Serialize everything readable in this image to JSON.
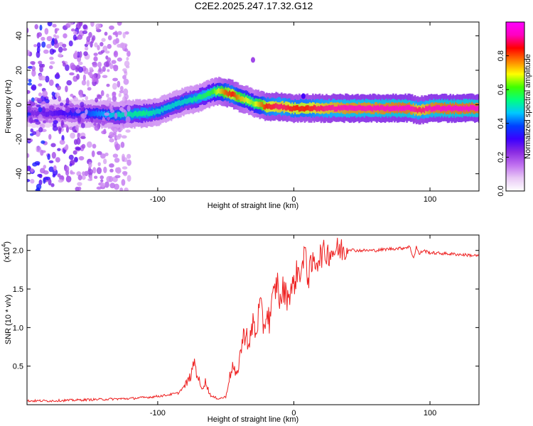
{
  "figure": {
    "title": "C2E2.2025.247.17.32.G12"
  },
  "chart_data": [
    {
      "type": "heatmap",
      "title": "C2E2.2025.247.17.32.G12",
      "xlabel": "Height of straight line (km)",
      "ylabel": "Frequency (Hz)",
      "xlim": [
        -196,
        136
      ],
      "ylim": [
        -50,
        48
      ],
      "xticks": [
        -100,
        0,
        100
      ],
      "xtick_labels": [
        "-100",
        "0",
        "100"
      ],
      "yticks": [
        -40,
        -20,
        0,
        20,
        40
      ],
      "ytick_labels": [
        "-40",
        "-20",
        "0",
        "20",
        "40"
      ],
      "colorbar": {
        "label": "Normalized spectral amplitude",
        "range": [
          0.0,
          1.0
        ],
        "ticks": [
          0.0,
          0.2,
          0.4,
          0.6,
          0.8
        ],
        "tick_labels": [
          "0.0",
          "0.2",
          "0.4",
          "0.6",
          "0.8"
        ],
        "colors": [
          "#ffffff",
          "#e8c8f5",
          "#c070f0",
          "#8a2be2",
          "#3a00ff",
          "#0040ff",
          "#00c8ff",
          "#00ff80",
          "#40ff00",
          "#ffff00",
          "#ff8000",
          "#ff0000",
          "#ff00c0",
          "#ff00ff"
        ]
      },
      "ridge": {
        "x": [
          -190,
          -170,
          -150,
          -130,
          -110,
          -100,
          -90,
          -80,
          -70,
          -60,
          -55,
          -50,
          -45,
          -40,
          -35,
          -30,
          -25,
          -20,
          -10,
          0,
          10,
          20,
          40,
          60,
          80,
          85,
          90,
          95,
          100,
          110,
          120,
          136
        ],
        "y": [
          -5,
          -5,
          -5,
          -6,
          -5,
          -4,
          -1,
          2,
          4,
          7,
          8,
          7,
          6,
          4,
          3,
          1,
          0,
          -1,
          -1,
          -2,
          -2,
          -2,
          -2,
          -2,
          -2,
          -2,
          -3,
          -3,
          -2,
          -2,
          -2,
          -2
        ],
        "peak_amplitude": [
          0.25,
          0.3,
          0.4,
          0.5,
          0.55,
          0.5,
          0.5,
          0.5,
          0.55,
          0.6,
          0.7,
          0.8,
          0.85,
          0.75,
          0.7,
          0.65,
          0.75,
          0.85,
          0.9,
          0.85,
          0.85,
          0.9,
          0.95,
          0.95,
          0.97,
          0.97,
          0.9,
          0.9,
          0.95,
          0.97,
          0.97,
          0.97
        ]
      },
      "blobs": [
        {
          "x": 7,
          "y": 5,
          "amplitude": 0.3
        },
        {
          "x": -30,
          "y": 26,
          "amplitude": 0.2
        }
      ]
    },
    {
      "type": "line",
      "xlabel": "Height of straight line (km)",
      "ylabel": "SNR (10 * v/v)",
      "y_multiplier_label": "(x10",
      "y_multiplier_exp": "4",
      "y_multiplier_close": ")",
      "xlim": [
        -196,
        136
      ],
      "ylim": [
        0,
        2.2
      ],
      "xticks": [
        -100,
        0,
        100
      ],
      "xtick_labels": [
        "-100",
        "0",
        "100"
      ],
      "yticks": [
        0.5,
        1.0,
        1.5,
        2.0
      ],
      "ytick_labels": [
        "0.5",
        "1.0",
        "1.5",
        "2.0"
      ],
      "series": [
        {
          "name": "SNR",
          "color": "#ee2222",
          "x": [
            -196,
            -180,
            -160,
            -140,
            -120,
            -105,
            -95,
            -85,
            -80,
            -78,
            -75,
            -73,
            -72,
            -70,
            -68,
            -65,
            -62,
            -60,
            -55,
            -50,
            -48,
            -45,
            -42,
            -40,
            -38,
            -35,
            -33,
            -30,
            -28,
            -25,
            -22,
            -20,
            -18,
            -15,
            -12,
            -10,
            -8,
            -5,
            -2,
            0,
            2,
            5,
            7,
            9,
            10,
            12,
            15,
            18,
            20,
            25,
            30,
            35,
            40,
            45,
            50,
            60,
            70,
            80,
            85,
            88,
            90,
            92,
            95,
            100,
            110,
            120,
            136
          ],
          "y": [
            0.05,
            0.05,
            0.06,
            0.07,
            0.08,
            0.1,
            0.12,
            0.15,
            0.25,
            0.3,
            0.4,
            0.6,
            0.45,
            0.35,
            0.2,
            0.3,
            0.15,
            0.1,
            0.08,
            0.1,
            0.3,
            0.5,
            0.35,
            0.6,
            0.8,
            1.0,
            0.7,
            1.1,
            0.9,
            1.3,
            1.0,
            1.2,
            1.1,
            1.4,
            1.6,
            1.3,
            1.5,
            1.4,
            1.5,
            1.55,
            1.7,
            1.75,
            1.8,
            2.1,
            1.6,
            1.75,
            1.85,
            1.9,
            1.95,
            1.97,
            2.0,
            2.01,
            2.02,
            2.0,
            2.0,
            2.0,
            2.02,
            2.03,
            2.05,
            1.9,
            2.05,
            1.95,
            2.0,
            1.97,
            1.96,
            1.95,
            1.93
          ]
        }
      ]
    }
  ]
}
